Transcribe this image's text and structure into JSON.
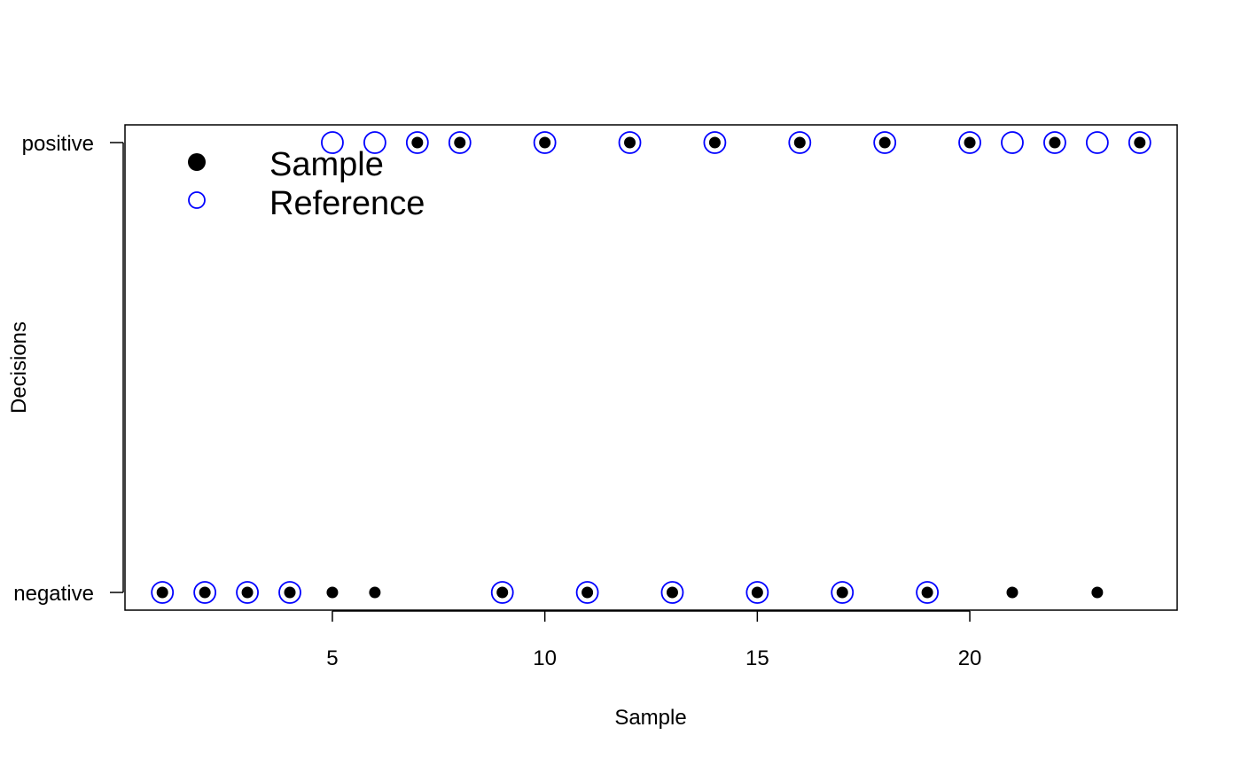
{
  "chart_data": {
    "type": "scatter",
    "title": "",
    "xlabel": "Sample",
    "ylabel": "Decisions",
    "xlim": [
      0.12,
      24.88
    ],
    "x_ticks": [
      5,
      10,
      15,
      20
    ],
    "y_categories": [
      "negative",
      "positive"
    ],
    "grid": false,
    "legend_position": "top-left",
    "series": [
      {
        "name": "Sample",
        "marker": "filled-circle",
        "color": "#000000",
        "x": [
          1,
          2,
          3,
          4,
          5,
          6,
          7,
          8,
          9,
          10,
          11,
          12,
          13,
          14,
          15,
          16,
          17,
          18,
          19,
          20,
          21,
          22,
          23,
          24
        ],
        "y": [
          "negative",
          "negative",
          "negative",
          "negative",
          "negative",
          "negative",
          "positive",
          "positive",
          "negative",
          "positive",
          "negative",
          "positive",
          "negative",
          "positive",
          "negative",
          "positive",
          "negative",
          "positive",
          "negative",
          "positive",
          "negative",
          "positive",
          "negative",
          "positive"
        ]
      },
      {
        "name": "Reference",
        "marker": "open-circle",
        "color": "#0000ff",
        "x": [
          1,
          2,
          3,
          4,
          5,
          6,
          7,
          8,
          9,
          10,
          11,
          12,
          13,
          14,
          15,
          16,
          17,
          18,
          19,
          20,
          21,
          22,
          23,
          24
        ],
        "y": [
          "negative",
          "negative",
          "negative",
          "negative",
          "positive",
          "positive",
          "positive",
          "positive",
          "negative",
          "positive",
          "negative",
          "positive",
          "negative",
          "positive",
          "negative",
          "positive",
          "negative",
          "positive",
          "negative",
          "positive",
          "positive",
          "positive",
          "positive",
          "positive"
        ]
      }
    ]
  }
}
